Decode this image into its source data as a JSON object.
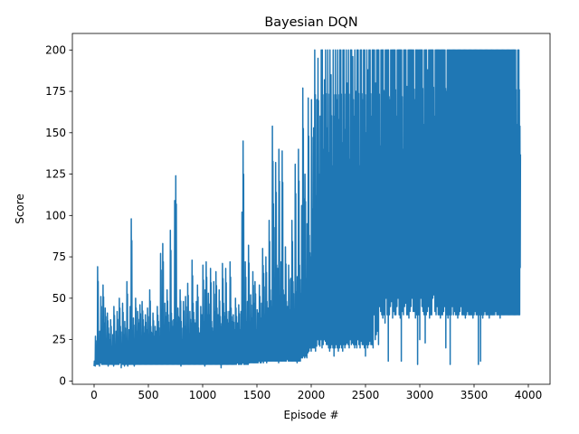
{
  "chart_data": {
    "type": "line",
    "title": "Bayesian DQN",
    "xlabel": "Episode #",
    "ylabel": "Score",
    "xlim": [
      -200,
      4200
    ],
    "ylim": [
      -2,
      210
    ],
    "x_ticks": [
      0,
      500,
      1000,
      1500,
      2000,
      2500,
      3000,
      3500,
      4000
    ],
    "x_tick_labels": [
      "0",
      "500",
      "1000",
      "1500",
      "2000",
      "2500",
      "3000",
      "3500",
      "4000"
    ],
    "y_ticks": [
      0,
      25,
      50,
      75,
      100,
      125,
      150,
      175,
      200
    ],
    "y_tick_labels": [
      "0",
      "25",
      "50",
      "75",
      "100",
      "125",
      "150",
      "175",
      "200"
    ],
    "grid": false,
    "legend": "none",
    "series": [
      {
        "color": "#1f77b4",
        "x_start": 0,
        "x_step": 10,
        "values": [
          12,
          27,
          20,
          69,
          15,
          30,
          51,
          22,
          58,
          35,
          44,
          18,
          41,
          32,
          25,
          37,
          21,
          28,
          45,
          19,
          30,
          42,
          25,
          50,
          33,
          20,
          47,
          28,
          36,
          22,
          60,
          24,
          31,
          45,
          98,
          28,
          38,
          22,
          50,
          30,
          42,
          35,
          46,
          26,
          48,
          37,
          29,
          40,
          31,
          44,
          20,
          55,
          33,
          29,
          41,
          27,
          33,
          30,
          45,
          36,
          25,
          77,
          35,
          83,
          29,
          47,
          39,
          55,
          40,
          28,
          91,
          41,
          33,
          37,
          109,
          124,
          30,
          44,
          38,
          55,
          36,
          25,
          48,
          33,
          51,
          30,
          59,
          28,
          42,
          35,
          73,
          47,
          37,
          35,
          48,
          58,
          32,
          29,
          45,
          40,
          70,
          36,
          55,
          72,
          40,
          53,
          40,
          68,
          36,
          30,
          60,
          42,
          66,
          44,
          40,
          55,
          39,
          33,
          71,
          47,
          39,
          68,
          42,
          35,
          42,
          72,
          44,
          36,
          40,
          31,
          50,
          39,
          35,
          46,
          31,
          42,
          102,
          145,
          41,
          72,
          36,
          48,
          82,
          33,
          52,
          38,
          66,
          47,
          60,
          31,
          43,
          41,
          58,
          38,
          47,
          80,
          65,
          40,
          75,
          48,
          44,
          97,
          55,
          45,
          154,
          107,
          59,
          132,
          70,
          68,
          140,
          48,
          72,
          139,
          55,
          52,
          81,
          48,
          45,
          70,
          43,
          62,
          97,
          60,
          40,
          131,
          54,
          63,
          140,
          70,
          53,
          106,
          177,
          110,
          125,
          62,
          95,
          171,
          88,
          75,
          170,
          104,
          153,
          200,
          112,
          170,
          195,
          125,
          160,
          200,
          200,
          140,
          182,
          200,
          153,
          200,
          138,
          200,
          185,
          130,
          200,
          160,
          200,
          170,
          200,
          158,
          200,
          200,
          144,
          200,
          200,
          152,
          200,
          180,
          200,
          134,
          200,
          200,
          196,
          160,
          200,
          175,
          200,
          200,
          130,
          200,
          200,
          170,
          200,
          200,
          150,
          200,
          188,
          200,
          200,
          160,
          200,
          200,
          200,
          180,
          200,
          200,
          200,
          142,
          200,
          200,
          200,
          175,
          200,
          200,
          200,
          200,
          170,
          200,
          200,
          200,
          200,
          200,
          160,
          200,
          200,
          200,
          200,
          200,
          140,
          200,
          200,
          200,
          178,
          200,
          200,
          200,
          200,
          200,
          200,
          170,
          200,
          200,
          200,
          200,
          200,
          200,
          200,
          155,
          200,
          200,
          200,
          188,
          200,
          200,
          200,
          200,
          200,
          160,
          200,
          200,
          200,
          200,
          200,
          200,
          200,
          200,
          200,
          200,
          175,
          200,
          200,
          200,
          200,
          200,
          200,
          200,
          200,
          200,
          200,
          200,
          200,
          200,
          200,
          200,
          200,
          200,
          200,
          200,
          200,
          200,
          200,
          200,
          200,
          200,
          200,
          200,
          200,
          200,
          200,
          200,
          200,
          200,
          200,
          200,
          200,
          200,
          200,
          200,
          200,
          200,
          200,
          200,
          200,
          200,
          200,
          200,
          200,
          200,
          200,
          200,
          200,
          200,
          200,
          200,
          200,
          200,
          200,
          200,
          200,
          200,
          200,
          200,
          200,
          155,
          200,
          200,
          154
        ],
        "min_values": [
          9,
          9,
          10,
          10,
          10,
          9,
          11,
          10,
          10,
          10,
          10,
          10,
          10,
          9,
          10,
          10,
          10,
          10,
          9,
          10,
          10,
          10,
          10,
          10,
          11,
          8,
          10,
          10,
          9,
          10,
          10,
          9,
          10,
          10,
          10,
          10,
          10,
          9,
          10,
          10,
          10,
          10,
          10,
          10,
          10,
          10,
          10,
          10,
          10,
          10,
          10,
          10,
          10,
          10,
          10,
          10,
          10,
          10,
          10,
          10,
          10,
          10,
          10,
          10,
          10,
          10,
          10,
          10,
          10,
          10,
          10,
          10,
          10,
          10,
          10,
          10,
          10,
          10,
          10,
          10,
          9,
          10,
          10,
          10,
          10,
          10,
          10,
          10,
          10,
          10,
          10,
          10,
          10,
          10,
          10,
          10,
          10,
          10,
          10,
          10,
          10,
          10,
          9,
          10,
          10,
          10,
          10,
          10,
          10,
          10,
          10,
          10,
          10,
          10,
          10,
          10,
          10,
          8,
          10,
          10,
          10,
          10,
          10,
          10,
          10,
          10,
          10,
          10,
          10,
          10,
          10,
          10,
          11,
          10,
          10,
          10,
          10,
          11,
          10,
          10,
          10,
          10,
          10,
          11,
          11,
          11,
          11,
          11,
          11,
          11,
          11,
          11,
          12,
          11,
          11,
          12,
          11,
          12,
          12,
          11,
          12,
          12,
          12,
          12,
          12,
          12,
          12,
          12,
          12,
          12,
          11,
          12,
          12,
          12,
          12,
          12,
          12,
          12,
          13,
          12,
          12,
          12,
          12,
          12,
          12,
          12,
          12,
          11,
          12,
          12,
          12,
          14,
          14,
          15,
          14,
          15,
          14,
          17,
          18,
          20,
          18,
          20,
          20,
          20,
          18,
          21,
          25,
          22,
          21,
          25,
          20,
          22,
          25,
          24,
          22,
          22,
          20,
          18,
          20,
          22,
          20,
          15,
          20,
          22,
          20,
          18,
          20,
          22,
          20,
          18,
          22,
          20,
          22,
          23,
          22,
          20,
          25,
          22,
          23,
          22,
          20,
          22,
          20,
          25,
          22,
          20,
          24,
          22,
          22,
          20,
          15,
          22,
          20,
          22,
          24,
          22,
          22,
          20,
          40,
          25,
          28,
          30,
          22,
          45,
          42,
          40,
          38,
          40,
          35,
          50,
          40,
          12,
          40,
          45,
          48,
          38,
          42,
          40,
          40,
          45,
          50,
          40,
          38,
          12,
          42,
          40,
          45,
          47,
          40,
          40,
          38,
          42,
          45,
          50,
          42,
          42,
          38,
          40,
          10,
          40,
          25,
          50,
          45,
          42,
          40,
          23,
          40,
          42,
          45,
          38,
          40,
          40,
          50,
          52,
          42,
          40,
          45,
          40,
          40,
          38,
          40,
          40,
          42,
          45,
          20,
          40,
          38,
          40,
          10,
          40,
          45,
          40,
          42,
          40,
          40,
          38,
          40,
          42,
          45,
          40,
          40,
          40,
          38,
          40,
          42,
          40,
          40,
          40,
          40,
          38,
          40,
          42,
          40,
          40,
          10,
          40,
          12,
          40,
          38,
          40,
          42,
          40,
          40,
          40,
          38,
          40,
          40,
          40,
          40,
          40,
          42,
          40,
          40,
          40,
          38,
          40,
          40,
          40,
          40,
          40,
          40,
          40,
          40,
          40,
          40,
          40,
          40,
          40,
          40,
          40,
          40,
          40,
          40,
          40,
          40,
          40,
          40,
          40,
          40,
          40,
          35,
          40,
          33,
          40,
          40,
          19,
          40,
          40,
          45
        ]
      }
    ]
  }
}
